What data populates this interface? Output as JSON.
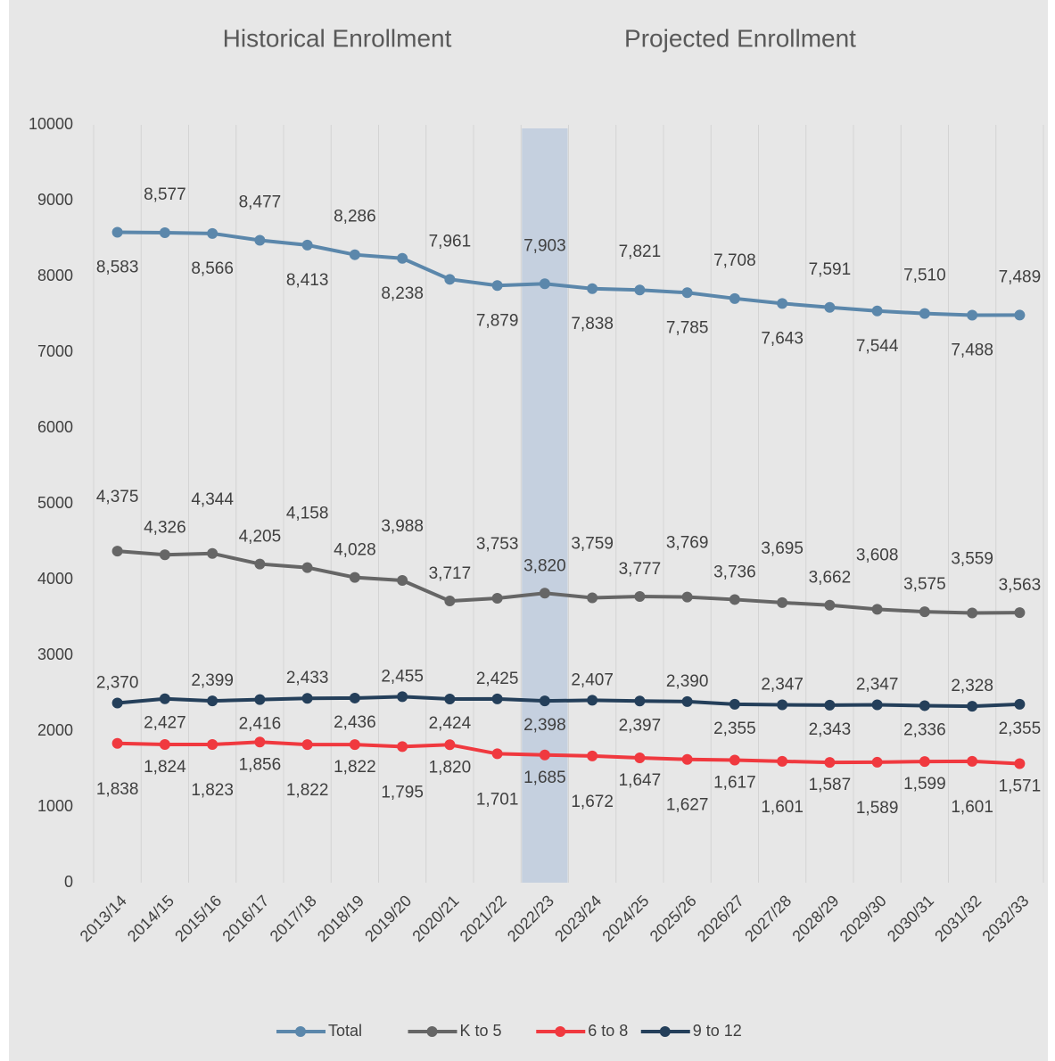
{
  "chart_data": {
    "type": "line",
    "annotations": [
      "Historical Enrollment",
      "Projected Enrollment"
    ],
    "categories": [
      "2013/14",
      "2014/15",
      "2015/16",
      "2016/17",
      "2017/18",
      "2018/19",
      "2019/20",
      "2020/21",
      "2021/22",
      "2022/23",
      "2023/24",
      "2024/25",
      "2025/26",
      "2026/27",
      "2027/28",
      "2028/29",
      "2029/30",
      "2030/31",
      "2031/32",
      "2032/33"
    ],
    "highlight": "2022/23",
    "series": [
      {
        "name": "Total",
        "color": "#5b87ab",
        "values": [
          8583,
          8577,
          8566,
          8477,
          8413,
          8286,
          8238,
          7961,
          7879,
          7903,
          7838,
          7821,
          7785,
          7708,
          7643,
          7591,
          7544,
          7510,
          7488,
          7489
        ],
        "value_labels": [
          "8,583",
          "8,577",
          "8,566",
          "8,477",
          "8,413",
          "8,286",
          "8,238",
          "7,961",
          "7,879",
          "7,903",
          "7,838",
          "7,821",
          "7,785",
          "7,708",
          "7,643",
          "7,591",
          "7,544",
          "7,510",
          "7,488",
          "7,489"
        ]
      },
      {
        "name": "K to 5",
        "color": "#666666",
        "values": [
          4375,
          4326,
          4344,
          4205,
          4158,
          4028,
          3988,
          3717,
          3753,
          3820,
          3759,
          3777,
          3769,
          3736,
          3695,
          3662,
          3608,
          3575,
          3559,
          3563
        ],
        "value_labels": [
          "4,375",
          "4,326",
          "4,344",
          "4,205",
          "4,158",
          "4,028",
          "3,988",
          "3,717",
          "3,753",
          "3,820",
          "3,759",
          "3,777",
          "3,769",
          "3,736",
          "3,695",
          "3,662",
          "3,608",
          "3,575",
          "3,559",
          "3,563"
        ]
      },
      {
        "name": "6 to 8",
        "color": "#f0393f",
        "values": [
          1838,
          1824,
          1823,
          1856,
          1822,
          1822,
          1795,
          1820,
          1701,
          1685,
          1672,
          1647,
          1627,
          1617,
          1601,
          1587,
          1589,
          1599,
          1601,
          1571
        ],
        "value_labels": [
          "1,838",
          "1,824",
          "1,823",
          "1,856",
          "1,822",
          "1,822",
          "1,795",
          "1,820",
          "1,701",
          "1,685",
          "1,672",
          "1,647",
          "1,627",
          "1,617",
          "1,601",
          "1,587",
          "1,589",
          "1,599",
          "1,601",
          "1,571"
        ]
      },
      {
        "name": "9 to 12",
        "color": "#243f5a",
        "values": [
          2370,
          2427,
          2399,
          2416,
          2433,
          2436,
          2455,
          2424,
          2425,
          2398,
          2407,
          2397,
          2390,
          2355,
          2347,
          2343,
          2347,
          2336,
          2328,
          2355
        ],
        "value_labels": [
          "2,370",
          "2,427",
          "2,399",
          "2,416",
          "2,433",
          "2,436",
          "2,455",
          "2,424",
          "2,425",
          "2,398",
          "2,407",
          "2,397",
          "2,390",
          "2,355",
          "2,347",
          "2,343",
          "2,347",
          "2,336",
          "2,328",
          "2,355"
        ]
      }
    ],
    "ylim": [
      0,
      10000
    ],
    "yticks": [
      0,
      1000,
      2000,
      3000,
      4000,
      5000,
      6000,
      7000,
      8000,
      9000,
      10000
    ],
    "legend": "bottom"
  }
}
